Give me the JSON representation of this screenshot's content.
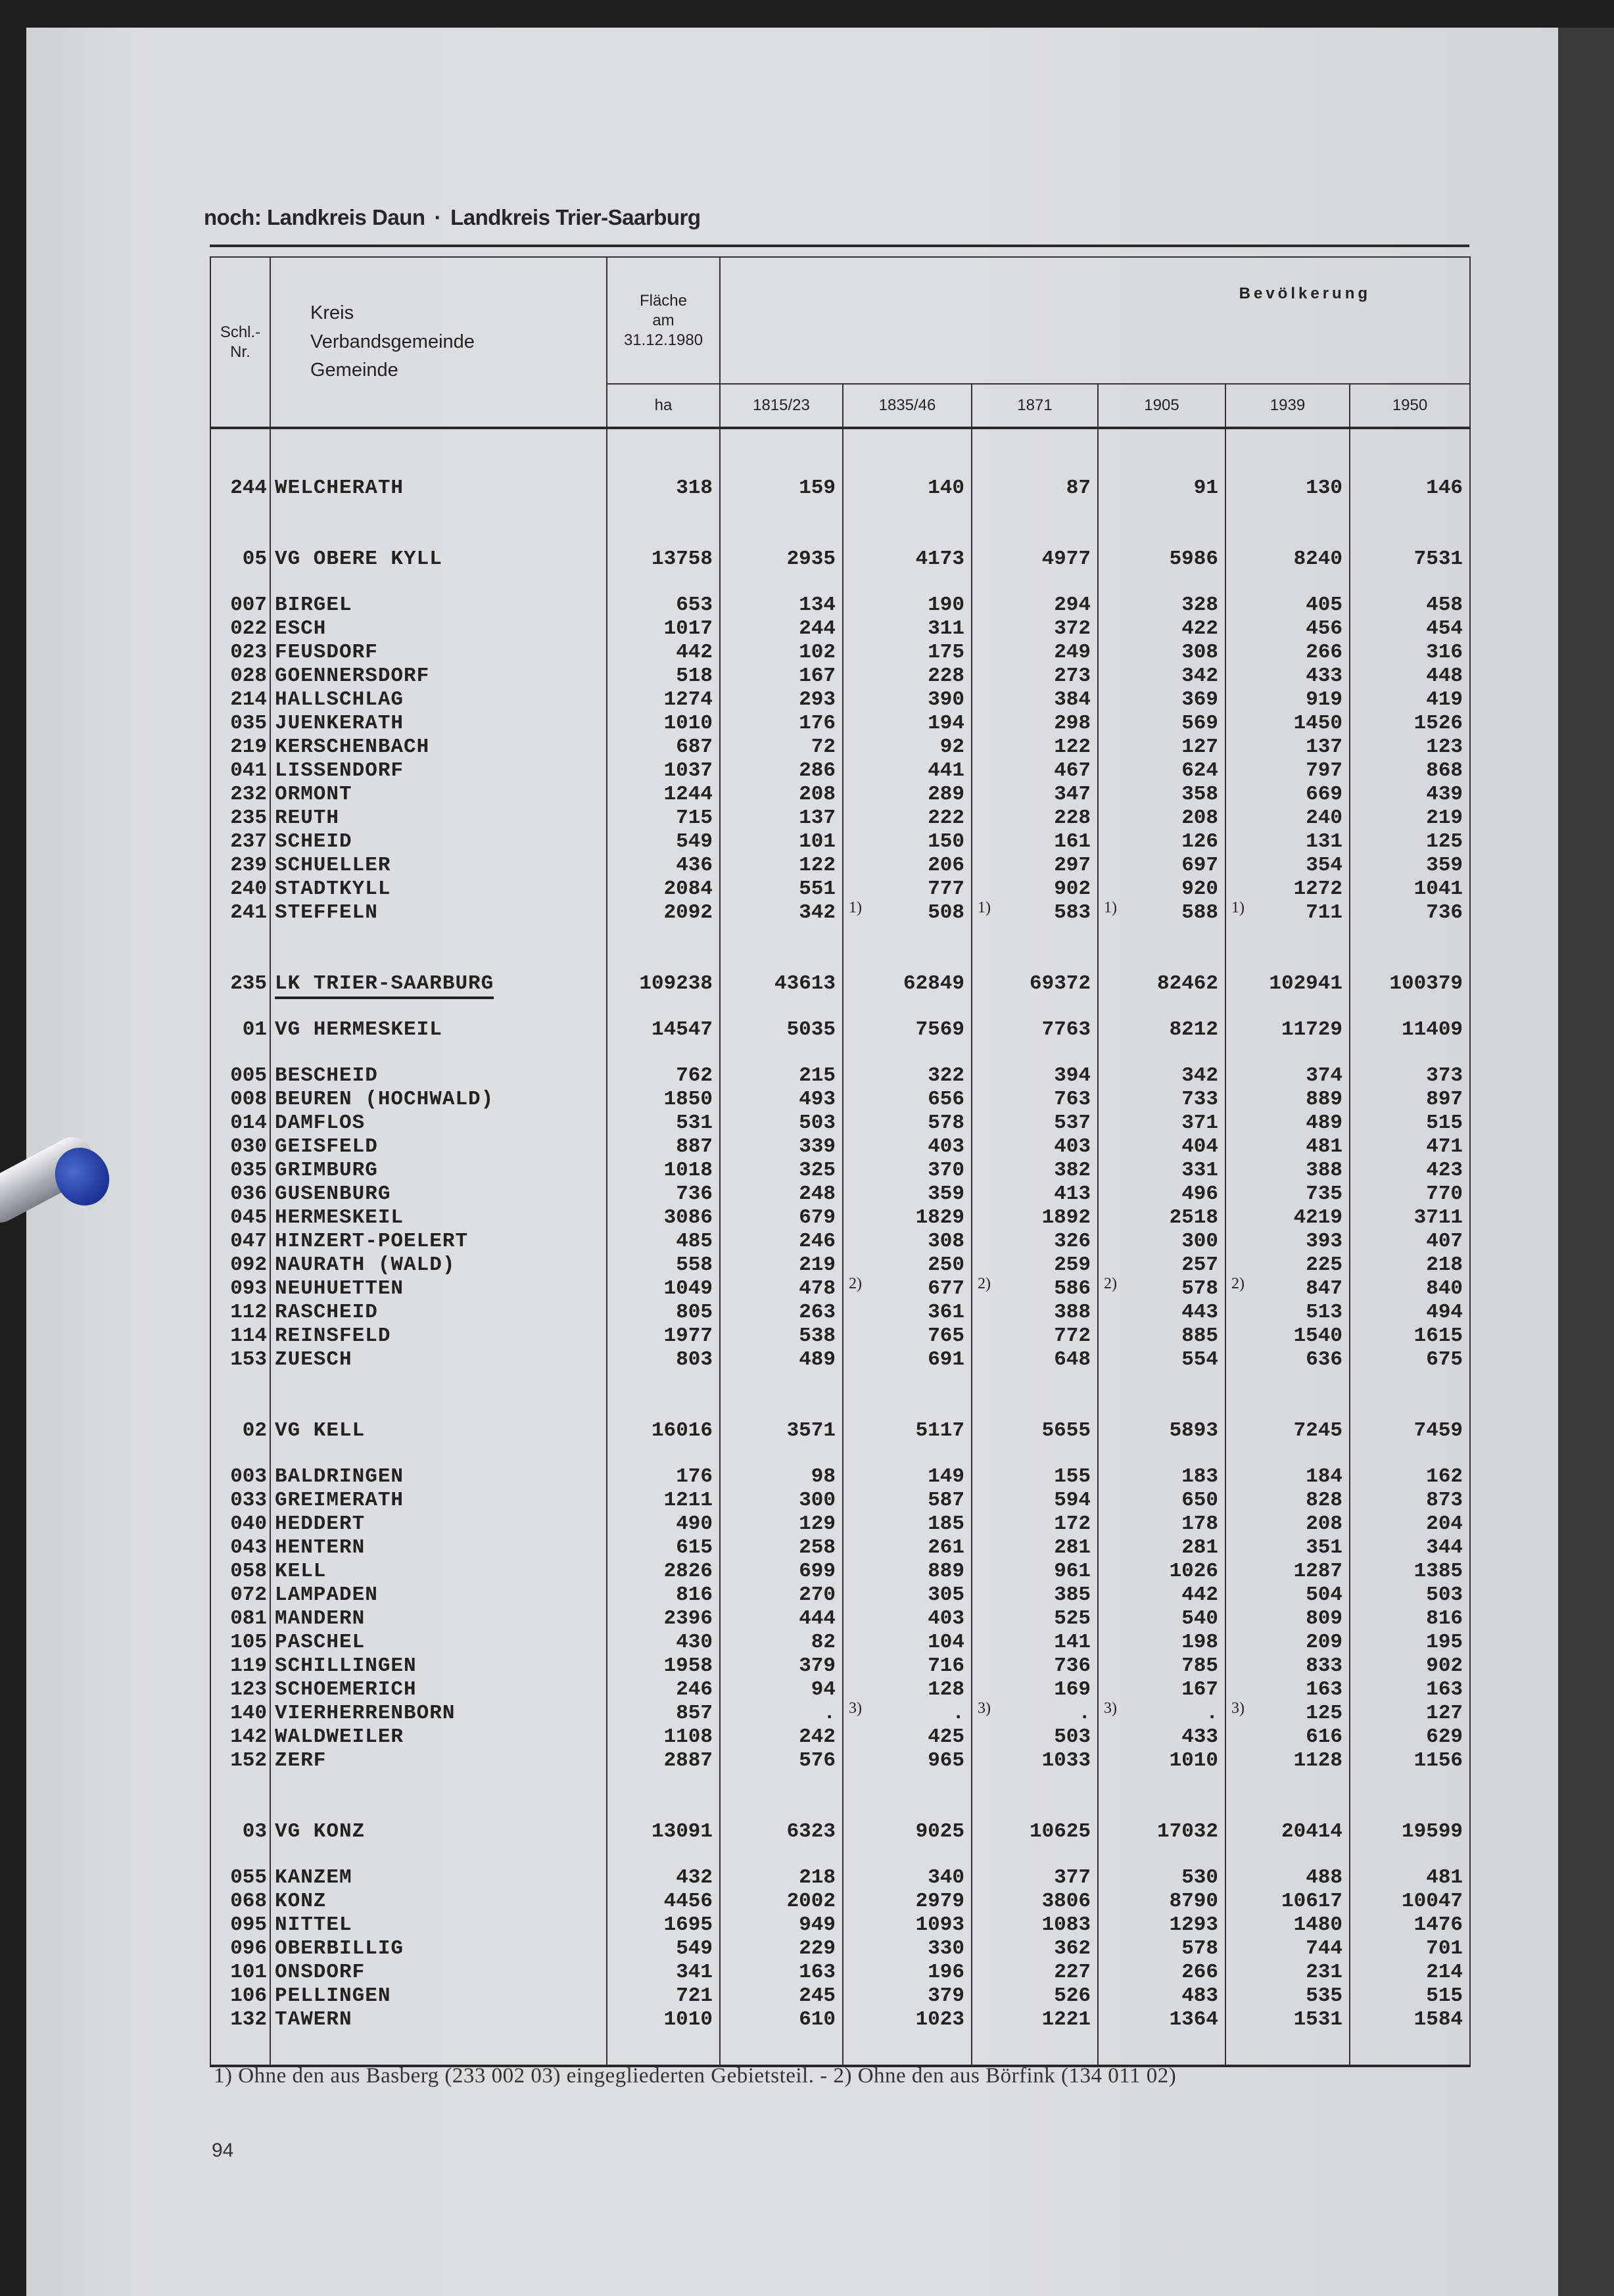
{
  "title": {
    "left": "noch: Landkreis Daun",
    "separator": "·",
    "right": "Landkreis Trier-Saarburg"
  },
  "header": {
    "nr": "Schl.-Nr.",
    "name_lines": [
      "Kreis",
      "Verbandsgemeinde",
      "Gemeinde"
    ],
    "area_lines": [
      "Fläche",
      "am",
      "31.12.1980"
    ],
    "area_unit": "ha",
    "population": "Bevölkerung",
    "years": [
      "1815/23",
      "1835/46",
      "1871",
      "1905",
      "1939",
      "1950"
    ]
  },
  "table": {
    "blocks": [
      {
        "rows": [
          {
            "nr": "244",
            "name": "WELCHERATH",
            "cells": [
              "318",
              "159",
              "140",
              "87",
              "91",
              "130",
              "146"
            ]
          }
        ]
      },
      {
        "rows": [
          {
            "nr": "05",
            "name": "VG OBERE KYLL",
            "cells": [
              "13758",
              "2935",
              "4173",
              "4977",
              "5986",
              "8240",
              "7531"
            ]
          }
        ]
      },
      {
        "rows": [
          {
            "nr": "007",
            "name": "BIRGEL",
            "cells": [
              "653",
              "134",
              "190",
              "294",
              "328",
              "405",
              "458"
            ]
          },
          {
            "nr": "022",
            "name": "ESCH",
            "cells": [
              "1017",
              "244",
              "311",
              "372",
              "422",
              "456",
              "454"
            ]
          },
          {
            "nr": "023",
            "name": "FEUSDORF",
            "cells": [
              "442",
              "102",
              "175",
              "249",
              "308",
              "266",
              "316"
            ]
          },
          {
            "nr": "028",
            "name": "GOENNERSDORF",
            "cells": [
              "518",
              "167",
              "228",
              "273",
              "342",
              "433",
              "448"
            ]
          },
          {
            "nr": "214",
            "name": "HALLSCHLAG",
            "cells": [
              "1274",
              "293",
              "390",
              "384",
              "369",
              "919",
              "419"
            ]
          },
          {
            "nr": "035",
            "name": "JUENKERATH",
            "cells": [
              "1010",
              "176",
              "194",
              "298",
              "569",
              "1450",
              "1526"
            ]
          },
          {
            "nr": "219",
            "name": "KERSCHENBACH",
            "cells": [
              "687",
              "72",
              "92",
              "122",
              "127",
              "137",
              "123"
            ]
          },
          {
            "nr": "041",
            "name": "LISSENDORF",
            "cells": [
              "1037",
              "286",
              "441",
              "467",
              "624",
              "797",
              "868"
            ]
          },
          {
            "nr": "232",
            "name": "ORMONT",
            "cells": [
              "1244",
              "208",
              "289",
              "347",
              "358",
              "669",
              "439"
            ]
          },
          {
            "nr": "235",
            "name": "REUTH",
            "cells": [
              "715",
              "137",
              "222",
              "228",
              "208",
              "240",
              "219"
            ]
          },
          {
            "nr": "237",
            "name": "SCHEID",
            "cells": [
              "549",
              "101",
              "150",
              "161",
              "126",
              "131",
              "125"
            ]
          },
          {
            "nr": "239",
            "name": "SCHUELLER",
            "cells": [
              "436",
              "122",
              "206",
              "297",
              "697",
              "354",
              "359"
            ]
          },
          {
            "nr": "240",
            "name": "STADTKYLL",
            "cells": [
              "2084",
              "551",
              "777",
              "902",
              "920",
              "1272",
              "1041"
            ]
          },
          {
            "nr": "241",
            "name": "STEFFELN",
            "cells": [
              "2092",
              {
                "v": "342",
                "fn": "1)"
              },
              {
                "v": "508",
                "fn": "1)"
              },
              {
                "v": "583",
                "fn": "1)"
              },
              {
                "v": "588",
                "fn": "1)"
              },
              "711",
              "736"
            ]
          }
        ]
      },
      {
        "rows": [
          {
            "nr": "235",
            "name": "LK TRIER-SAARBURG",
            "underline": true,
            "cells": [
              "109238",
              "43613",
              "62849",
              "69372",
              "82462",
              "102941",
              "100379"
            ]
          }
        ]
      },
      {
        "rows": [
          {
            "nr": "01",
            "name": "VG HERMESKEIL",
            "cells": [
              "14547",
              "5035",
              "7569",
              "7763",
              "8212",
              "11729",
              "11409"
            ]
          }
        ]
      },
      {
        "rows": [
          {
            "nr": "005",
            "name": "BESCHEID",
            "cells": [
              "762",
              "215",
              "322",
              "394",
              "342",
              "374",
              "373"
            ]
          },
          {
            "nr": "008",
            "name": "BEUREN (HOCHWALD)",
            "cells": [
              "1850",
              "493",
              "656",
              "763",
              "733",
              "889",
              "897"
            ]
          },
          {
            "nr": "014",
            "name": "DAMFLOS",
            "cells": [
              "531",
              "503",
              "578",
              "537",
              "371",
              "489",
              "515"
            ]
          },
          {
            "nr": "030",
            "name": "GEISFELD",
            "cells": [
              "887",
              "339",
              "403",
              "403",
              "404",
              "481",
              "471"
            ]
          },
          {
            "nr": "035",
            "name": "GRIMBURG",
            "cells": [
              "1018",
              "325",
              "370",
              "382",
              "331",
              "388",
              "423"
            ]
          },
          {
            "nr": "036",
            "name": "GUSENBURG",
            "cells": [
              "736",
              "248",
              "359",
              "413",
              "496",
              "735",
              "770"
            ]
          },
          {
            "nr": "045",
            "name": "HERMESKEIL",
            "cells": [
              "3086",
              "679",
              "1829",
              "1892",
              "2518",
              "4219",
              "3711"
            ]
          },
          {
            "nr": "047",
            "name": "HINZERT-POELERT",
            "cells": [
              "485",
              "246",
              "308",
              "326",
              "300",
              "393",
              "407"
            ]
          },
          {
            "nr": "092",
            "name": "NAURATH (WALD)",
            "cells": [
              "558",
              "219",
              "250",
              "259",
              "257",
              "225",
              "218"
            ]
          },
          {
            "nr": "093",
            "name": "NEUHUETTEN",
            "cells": [
              "1049",
              {
                "v": "478",
                "fn": "2)"
              },
              {
                "v": "677",
                "fn": "2)"
              },
              {
                "v": "586",
                "fn": "2)"
              },
              {
                "v": "578",
                "fn": "2)"
              },
              "847",
              "840"
            ]
          },
          {
            "nr": "112",
            "name": "RASCHEID",
            "cells": [
              "805",
              "263",
              "361",
              "388",
              "443",
              "513",
              "494"
            ]
          },
          {
            "nr": "114",
            "name": "REINSFELD",
            "cells": [
              "1977",
              "538",
              "765",
              "772",
              "885",
              "1540",
              "1615"
            ]
          },
          {
            "nr": "153",
            "name": "ZUESCH",
            "cells": [
              "803",
              "489",
              "691",
              "648",
              "554",
              "636",
              "675"
            ]
          }
        ]
      },
      {
        "rows": [
          {
            "nr": "02",
            "name": "VG KELL",
            "cells": [
              "16016",
              "3571",
              "5117",
              "5655",
              "5893",
              "7245",
              "7459"
            ]
          }
        ]
      },
      {
        "rows": [
          {
            "nr": "003",
            "name": "BALDRINGEN",
            "cells": [
              "176",
              "98",
              "149",
              "155",
              "183",
              "184",
              "162"
            ]
          },
          {
            "nr": "033",
            "name": "GREIMERATH",
            "cells": [
              "1211",
              "300",
              "587",
              "594",
              "650",
              "828",
              "873"
            ]
          },
          {
            "nr": "040",
            "name": "HEDDERT",
            "cells": [
              "490",
              "129",
              "185",
              "172",
              "178",
              "208",
              "204"
            ]
          },
          {
            "nr": "043",
            "name": "HENTERN",
            "cells": [
              "615",
              "258",
              "261",
              "281",
              "281",
              "351",
              "344"
            ]
          },
          {
            "nr": "058",
            "name": "KELL",
            "cells": [
              "2826",
              "699",
              "889",
              "961",
              "1026",
              "1287",
              "1385"
            ]
          },
          {
            "nr": "072",
            "name": "LAMPADEN",
            "cells": [
              "816",
              "270",
              "305",
              "385",
              "442",
              "504",
              "503"
            ]
          },
          {
            "nr": "081",
            "name": "MANDERN",
            "cells": [
              "2396",
              "444",
              "403",
              "525",
              "540",
              "809",
              "816"
            ]
          },
          {
            "nr": "105",
            "name": "PASCHEL",
            "cells": [
              "430",
              "82",
              "104",
              "141",
              "198",
              "209",
              "195"
            ]
          },
          {
            "nr": "119",
            "name": "SCHILLINGEN",
            "cells": [
              "1958",
              "379",
              "716",
              "736",
              "785",
              "833",
              "902"
            ]
          },
          {
            "nr": "123",
            "name": "SCHOEMERICH",
            "cells": [
              "246",
              "94",
              "128",
              "169",
              "167",
              "163",
              "163"
            ]
          },
          {
            "nr": "140",
            "name": "VIERHERRENBORN",
            "cells": [
              "857",
              {
                "v": ".",
                "fn": "3)"
              },
              {
                "v": ".",
                "fn": "3)"
              },
              {
                "v": ".",
                "fn": "3)"
              },
              {
                "v": ".",
                "fn": "3)"
              },
              "125",
              "127"
            ]
          },
          {
            "nr": "142",
            "name": "WALDWEILER",
            "cells": [
              "1108",
              "242",
              "425",
              "503",
              "433",
              "616",
              "629"
            ]
          },
          {
            "nr": "152",
            "name": "ZERF",
            "cells": [
              "2887",
              "576",
              "965",
              "1033",
              "1010",
              "1128",
              "1156"
            ]
          }
        ]
      },
      {
        "rows": [
          {
            "nr": "03",
            "name": "VG KONZ",
            "cells": [
              "13091",
              "6323",
              "9025",
              "10625",
              "17032",
              "20414",
              "19599"
            ]
          }
        ]
      },
      {
        "rows": [
          {
            "nr": "055",
            "name": "KANZEM",
            "cells": [
              "432",
              "218",
              "340",
              "377",
              "530",
              "488",
              "481"
            ]
          },
          {
            "nr": "068",
            "name": "KONZ",
            "cells": [
              "4456",
              "2002",
              "2979",
              "3806",
              "8790",
              "10617",
              "10047"
            ]
          },
          {
            "nr": "095",
            "name": "NITTEL",
            "cells": [
              "1695",
              "949",
              "1093",
              "1083",
              "1293",
              "1480",
              "1476"
            ]
          },
          {
            "nr": "096",
            "name": "OBERBILLIG",
            "cells": [
              "549",
              "229",
              "330",
              "362",
              "578",
              "744",
              "701"
            ]
          },
          {
            "nr": "101",
            "name": "ONSDORF",
            "cells": [
              "341",
              "163",
              "196",
              "227",
              "266",
              "231",
              "214"
            ]
          },
          {
            "nr": "106",
            "name": "PELLINGEN",
            "cells": [
              "721",
              "245",
              "379",
              "526",
              "483",
              "535",
              "515"
            ]
          },
          {
            "nr": "132",
            "name": "TAWERN",
            "cells": [
              "1010",
              "610",
              "1023",
              "1221",
              "1364",
              "1531",
              "1584"
            ]
          }
        ]
      }
    ]
  },
  "footnote": "1) Ohne den aus Basberg (233 002 03) eingegliederten Gebietsteil. - 2) Ohne den aus Börfink (134 011 02)",
  "page_number": "94"
}
